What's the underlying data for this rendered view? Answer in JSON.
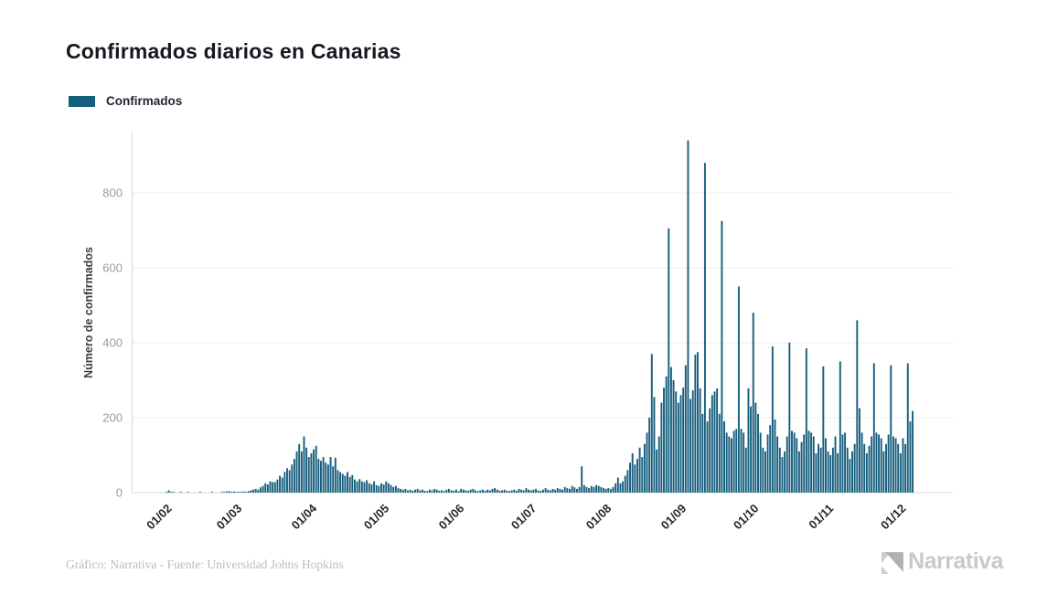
{
  "title": {
    "text": "Confirmados diarios en Canarias"
  },
  "legend": {
    "label": "Confirmados",
    "color": "#155d7d"
  },
  "footer": {
    "credit": "Gráfico: Narrativa - Fuente: Universidad Johns Hopkins",
    "brand": "Narrativa"
  },
  "colors": {
    "bar": "#155d7d",
    "grid": "#ededed",
    "zero_line": "#d9d9d9",
    "y_tick_text": "#9d9d9d",
    "x_tick_text": "#262626",
    "y_axis_title": "#3f3f3f"
  },
  "chart_data": {
    "type": "bar",
    "title": "Confirmados diarios en Canarias",
    "series_name": "Confirmados",
    "xlabel": "",
    "ylabel": "Número de confirmados",
    "ylim": [
      0,
      950
    ],
    "yticks": [
      0,
      200,
      400,
      600,
      800
    ],
    "xtick_labels": [
      "01/02",
      "01/03",
      "01/04",
      "01/05",
      "01/06",
      "01/07",
      "01/08",
      "01/09",
      "01/10",
      "01/11",
      "01/12"
    ],
    "grid": true,
    "legend_position": "top-left",
    "start_date": "2020-01-22",
    "values": [
      0,
      0,
      0,
      0,
      0,
      0,
      0,
      0,
      0,
      2,
      6,
      2,
      1,
      0,
      0,
      1,
      0,
      0,
      1,
      0,
      0,
      0,
      0,
      1,
      0,
      0,
      0,
      0,
      1,
      0,
      0,
      0,
      1,
      2,
      3,
      4,
      2,
      3,
      2,
      2,
      1,
      3,
      2,
      4,
      6,
      8,
      10,
      8,
      14,
      18,
      25,
      22,
      30,
      28,
      28,
      35,
      45,
      40,
      55,
      65,
      60,
      75,
      90,
      110,
      130,
      110,
      150,
      120,
      95,
      105,
      115,
      125,
      90,
      85,
      95,
      80,
      75,
      95,
      70,
      93,
      60,
      55,
      50,
      45,
      55,
      42,
      47,
      35,
      30,
      36,
      30,
      28,
      33,
      25,
      22,
      30,
      20,
      18,
      25,
      22,
      30,
      25,
      20,
      15,
      18,
      12,
      10,
      8,
      10,
      6,
      8,
      5,
      8,
      10,
      6,
      8,
      5,
      4,
      8,
      6,
      10,
      8,
      5,
      6,
      4,
      8,
      10,
      6,
      5,
      8,
      4,
      10,
      8,
      6,
      5,
      8,
      10,
      6,
      4,
      6,
      8,
      5,
      8,
      6,
      10,
      12,
      8,
      5,
      6,
      8,
      5,
      4,
      6,
      8,
      5,
      10,
      8,
      6,
      12,
      8,
      6,
      8,
      10,
      6,
      5,
      8,
      12,
      8,
      6,
      10,
      8,
      12,
      10,
      8,
      15,
      12,
      10,
      18,
      14,
      10,
      15,
      70,
      20,
      15,
      12,
      18,
      15,
      20,
      18,
      15,
      12,
      10,
      12,
      10,
      15,
      25,
      40,
      25,
      30,
      45,
      60,
      80,
      105,
      75,
      90,
      120,
      95,
      130,
      160,
      200,
      370,
      255,
      115,
      150,
      240,
      280,
      310,
      705,
      335,
      300,
      270,
      240,
      260,
      280,
      340,
      940,
      250,
      273,
      368,
      375,
      278,
      210,
      880,
      190,
      225,
      260,
      270,
      278,
      210,
      725,
      190,
      160,
      150,
      145,
      165,
      170,
      550,
      170,
      160,
      120,
      278,
      230,
      480,
      240,
      210,
      160,
      120,
      110,
      155,
      180,
      390,
      195,
      150,
      120,
      95,
      110,
      150,
      400,
      165,
      160,
      145,
      110,
      135,
      155,
      385,
      165,
      160,
      150,
      105,
      130,
      120,
      337,
      145,
      110,
      100,
      120,
      150,
      105,
      350,
      155,
      160,
      120,
      90,
      110,
      130,
      460,
      225,
      160,
      130,
      105,
      125,
      150,
      345,
      160,
      155,
      145,
      110,
      130,
      155,
      340,
      150,
      145,
      130,
      105,
      145,
      130,
      345,
      190,
      218
    ]
  }
}
